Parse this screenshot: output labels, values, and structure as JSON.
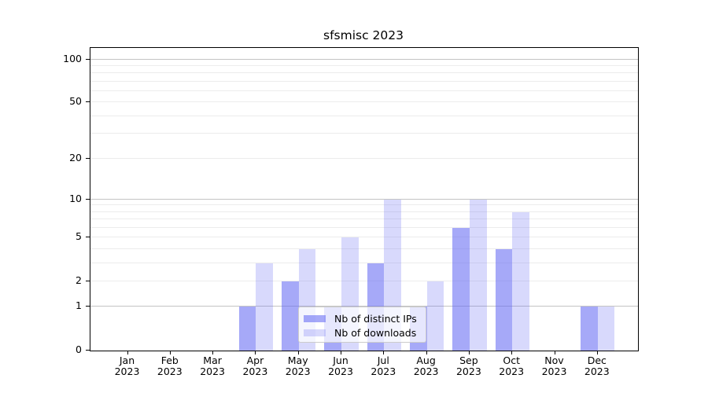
{
  "title": "sfsmisc 2023",
  "colors": {
    "background": "#ffffff",
    "axis": "#000000",
    "grid_major": "#c4c4c4",
    "grid_minor": "#ececec",
    "bar_ips": "rgba(99,104,243,0.57)",
    "bar_downloads": "rgba(99,104,243,0.25)",
    "legend_border": "#cccccc"
  },
  "legend": {
    "items": [
      {
        "label": "Nb of distinct IPs",
        "swatch": "bar_ips"
      },
      {
        "label": "Nb of downloads",
        "swatch": "bar_downloads"
      }
    ],
    "position": "lower-center-inside"
  },
  "chart_data": {
    "type": "bar",
    "title": "sfsmisc 2023",
    "xlabel": "",
    "ylabel": "",
    "yscale": "log1p",
    "ylim": [
      0,
      120
    ],
    "grid": true,
    "categories": [
      "Jan 2023",
      "Feb 2023",
      "Mar 2023",
      "Apr 2023",
      "May 2023",
      "Jun 2023",
      "Jul 2023",
      "Aug 2023",
      "Sep 2023",
      "Oct 2023",
      "Nov 2023",
      "Dec 2023"
    ],
    "series": [
      {
        "name": "Nb of distinct IPs",
        "values": [
          0,
          0,
          0,
          1,
          2,
          1,
          3,
          1,
          6,
          4,
          0,
          1
        ]
      },
      {
        "name": "Nb of downloads",
        "values": [
          0,
          0,
          0,
          3,
          4,
          5,
          10,
          2,
          10,
          8,
          0,
          1
        ]
      }
    ],
    "yticks": [
      {
        "value": 0,
        "label": "0"
      },
      {
        "value": 1,
        "label": "1"
      },
      {
        "value": 2,
        "label": "2"
      },
      {
        "value": 5,
        "label": "5"
      },
      {
        "value": 10,
        "label": "10"
      },
      {
        "value": 20,
        "label": "20"
      },
      {
        "value": 50,
        "label": "50"
      },
      {
        "value": 100,
        "label": "100"
      }
    ],
    "major_gridlines": [
      1,
      10,
      100
    ],
    "minor_gridlines": [
      2,
      3,
      4,
      5,
      6,
      7,
      8,
      9,
      20,
      30,
      40,
      50,
      60,
      70,
      80,
      90
    ]
  }
}
